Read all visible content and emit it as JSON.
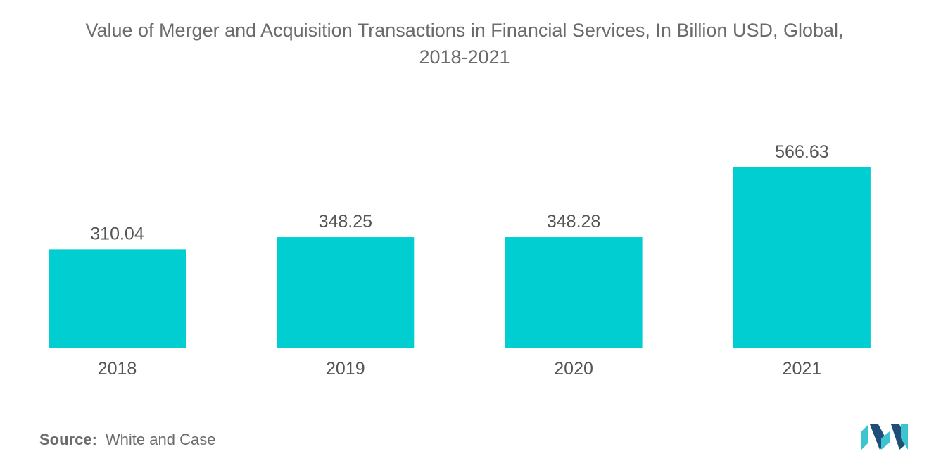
{
  "title": {
    "line1": "Value of Merger and Acquisition Transactions in Financial Services, In Billion USD, Global,",
    "line2": "2018-2021"
  },
  "source": {
    "label": "Source:",
    "text": "White and Case"
  },
  "colors": {
    "bar": "#00CED1",
    "text": "#555555",
    "logo_dark": "#1f4e79",
    "logo_light": "#3cc4d0"
  },
  "chart_data": {
    "type": "bar",
    "title": "Value of Merger and Acquisition Transactions in Financial Services, In Billion USD, Global, 2018-2021",
    "categories": [
      "2018",
      "2019",
      "2020",
      "2021"
    ],
    "values": [
      310.04,
      348.25,
      348.28,
      566.63
    ],
    "value_labels": [
      "310.04",
      "348.25",
      "348.28",
      "566.63"
    ],
    "xlabel": "",
    "ylabel": "",
    "ylim": [
      0,
      566.63
    ],
    "grid": false,
    "legend": "none",
    "y_axis_visible": false
  }
}
